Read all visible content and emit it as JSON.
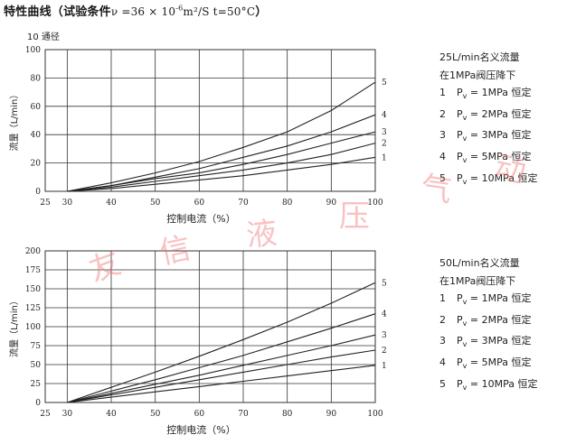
{
  "title": {
    "main": "特性曲线（试验条件",
    "conditions": "ν =36 × 10",
    "exp": "-6",
    "unit": "m²/S  t=50°C",
    "close": "）"
  },
  "watermark": [
    "友",
    "信",
    "液",
    "压",
    "气",
    "动"
  ],
  "colors": {
    "line": "#222222",
    "grid": "#333333",
    "watermark": "#f07a7a"
  },
  "charts": [
    {
      "diameter_label": "10 通径",
      "legend": {
        "heading": "25L/min名义流量",
        "subheading": "在1MPa阀压降下",
        "items": [
          {
            "num": "1",
            "pv": "P",
            "sub": "v",
            "value": "= 1MPa 恒定"
          },
          {
            "num": "2",
            "pv": "P",
            "sub": "v",
            "value": "= 2MPa 恒定"
          },
          {
            "num": "3",
            "pv": "P",
            "sub": "v",
            "value": "= 3MPa 恒定"
          },
          {
            "num": "4",
            "pv": "P",
            "sub": "v",
            "value": "= 5MPa 恒定"
          },
          {
            "num": "5",
            "pv": "P",
            "sub": "v",
            "value": "= 10MPa 恒定"
          }
        ]
      }
    },
    {
      "diameter_label": "",
      "legend": {
        "heading": "50L/min名义流量",
        "subheading": "在1MPa阀压降下",
        "items": [
          {
            "num": "1",
            "pv": "P",
            "sub": "v",
            "value": "= 1MPa 恒定"
          },
          {
            "num": "2",
            "pv": "P",
            "sub": "v",
            "value": "= 2MPa 恒定"
          },
          {
            "num": "3",
            "pv": "P",
            "sub": "v",
            "value": "= 3MPa 恒定"
          },
          {
            "num": "4",
            "pv": "P",
            "sub": "v",
            "value": "= 5MPa 恒定"
          },
          {
            "num": "5",
            "pv": "P",
            "sub": "v",
            "value": "= 10MPa 恒定"
          }
        ]
      }
    }
  ],
  "chart_data": [
    {
      "type": "line",
      "title": "",
      "xlabel": "控制电流（%）",
      "ylabel": "流量（L/min）",
      "xlim": [
        25,
        100
      ],
      "ylim": [
        0,
        100
      ],
      "xticks": [
        25,
        30,
        40,
        50,
        60,
        70,
        80,
        90,
        100
      ],
      "xtick_labels": [
        "25",
        "30",
        "40",
        "50",
        "60",
        "70",
        "80",
        "90",
        "100"
      ],
      "yticks": [
        0,
        20,
        40,
        60,
        80,
        100
      ],
      "ytick_labels": [
        "0",
        "20",
        "40",
        "60",
        "80",
        "100"
      ],
      "grid": true,
      "x": [
        30,
        40,
        50,
        60,
        70,
        80,
        90,
        100
      ],
      "series": [
        {
          "name": "1",
          "values": [
            0,
            2,
            5,
            8,
            11,
            15,
            19,
            24
          ]
        },
        {
          "name": "2",
          "values": [
            0,
            3,
            7,
            11,
            15,
            20,
            26,
            34
          ]
        },
        {
          "name": "3",
          "values": [
            0,
            4,
            9,
            13,
            19,
            26,
            34,
            42
          ]
        },
        {
          "name": "4",
          "values": [
            0,
            4,
            10,
            16,
            24,
            32,
            42,
            54
          ]
        },
        {
          "name": "5",
          "values": [
            0,
            6,
            13,
            21,
            31,
            42,
            57,
            77
          ]
        }
      ]
    },
    {
      "type": "line",
      "title": "",
      "xlabel": "控制电流（%）",
      "ylabel": "流量（L/min）",
      "xlim": [
        25,
        100
      ],
      "ylim": [
        0,
        200
      ],
      "xticks": [
        25,
        30,
        40,
        50,
        60,
        70,
        80,
        90,
        100
      ],
      "xtick_labels": [
        "25",
        "30",
        "40",
        "50",
        "60",
        "70",
        "80",
        "90",
        "100"
      ],
      "yticks": [
        0,
        25,
        50,
        75,
        100,
        125,
        150,
        175,
        200
      ],
      "ytick_labels": [
        "0",
        "25",
        "50",
        "75",
        "100",
        "125",
        "150",
        "175",
        "200"
      ],
      "grid": true,
      "x": [
        30,
        40,
        50,
        60,
        70,
        80,
        90,
        100
      ],
      "series": [
        {
          "name": "1",
          "values": [
            0,
            7,
            14,
            21,
            28,
            35,
            42,
            49
          ]
        },
        {
          "name": "2",
          "values": [
            0,
            10,
            20,
            30,
            40,
            50,
            60,
            69
          ]
        },
        {
          "name": "3",
          "values": [
            0,
            12,
            24,
            36,
            49,
            62,
            75,
            89
          ]
        },
        {
          "name": "4",
          "values": [
            0,
            15,
            30,
            46,
            62,
            80,
            98,
            117
          ]
        },
        {
          "name": "5",
          "values": [
            0,
            20,
            40,
            61,
            83,
            106,
            131,
            158
          ]
        }
      ]
    }
  ]
}
